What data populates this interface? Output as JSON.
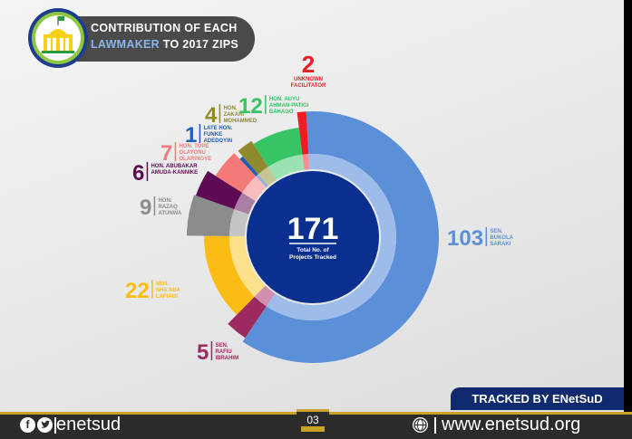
{
  "header": {
    "title_line1": "Contribution of Each",
    "title_line2_highlight": "Lawmaker",
    "title_line2_rest": " to 2017 ZIPs"
  },
  "chart_data": {
    "type": "pie",
    "subtype": "donut",
    "title": "Contribution of Each Lawmaker to 2017 ZIPs",
    "center_value": "171",
    "center_label_line1": "Total No. of",
    "center_label_line2": "Projects Tracked",
    "slices": [
      {
        "value": 103,
        "label": [
          "SEN.",
          "BUKOLA",
          "SARAKI"
        ],
        "color": "#5b8fd8",
        "inner_color": "#9dbcea"
      },
      {
        "value": 5,
        "label": [
          "SEN.",
          "RAFIU",
          "IBRAHIM"
        ],
        "color": "#9c2a5f",
        "inner_color": "#cf8fb0"
      },
      {
        "value": 22,
        "label": [
          "SEN.",
          "SHA'ABA",
          "LAFIAGI"
        ],
        "color": "#fbbd14",
        "inner_color": "#fde08a"
      },
      {
        "value": 9,
        "label": [
          "HON.",
          "RAZAQ",
          "ATUNWA"
        ],
        "color": "#8c8c8c",
        "inner_color": "#c5c5c5"
      },
      {
        "value": 6,
        "label": [
          "HON. ABUBAKAR",
          "AMUDA-KANNIKE"
        ],
        "color": "#5e0b54",
        "inner_color": "#a97fa5"
      },
      {
        "value": 7,
        "label": [
          "HON. TOPE",
          "OLAYONU",
          "OLARINOYE"
        ],
        "color": "#f47a7a",
        "inner_color": "#f9bcbc"
      },
      {
        "value": 1,
        "label": [
          "LATE HON.",
          "FUNKE",
          "ADEDOYIN"
        ],
        "color": "#1f5fb8",
        "inner_color": "#8fafdc"
      },
      {
        "value": 4,
        "label": [
          "HON.",
          "ZAKARI",
          "MOHAMMED"
        ],
        "color": "#8f8a2c",
        "inner_color": "#c7c495"
      },
      {
        "value": 12,
        "label": [
          "HON. AUYU",
          "AHMAN-PATIGI",
          "BAHAGO"
        ],
        "color": "#37c465",
        "inner_color": "#9be2b2"
      },
      {
        "value": 2,
        "label": [
          "UNKNOWN",
          "FACILITATOR"
        ],
        "color": "#ef1c24",
        "inner_color": "#f78e92"
      }
    ]
  },
  "footer": {
    "tracked_by": "TRACKED BY ENetSuD",
    "page_number": "03",
    "handle": "enetsud",
    "website": "www.enetsud.org"
  },
  "icons": {
    "facebook": "facebook-icon",
    "twitter": "twitter-icon",
    "globe": "globe-icon",
    "logo": "assembly-logo"
  }
}
